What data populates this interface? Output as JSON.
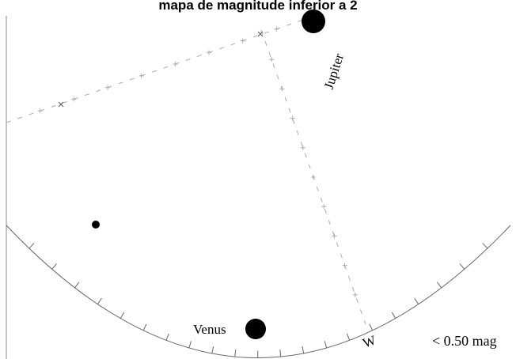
{
  "title": "mapa de magnitude inferior a 2",
  "magnitude_note": "< 0.50 mag",
  "cardinal_w": "W",
  "bodies": [
    {
      "label": "Jupiter",
      "size": "large"
    },
    {
      "label": "Venus",
      "size": "large"
    },
    {
      "label": "",
      "size": "small"
    }
  ],
  "colors": {
    "ink": "#000000",
    "grid": "#9a9a9a",
    "horizon": "#666666",
    "background": "#ffffff"
  }
}
